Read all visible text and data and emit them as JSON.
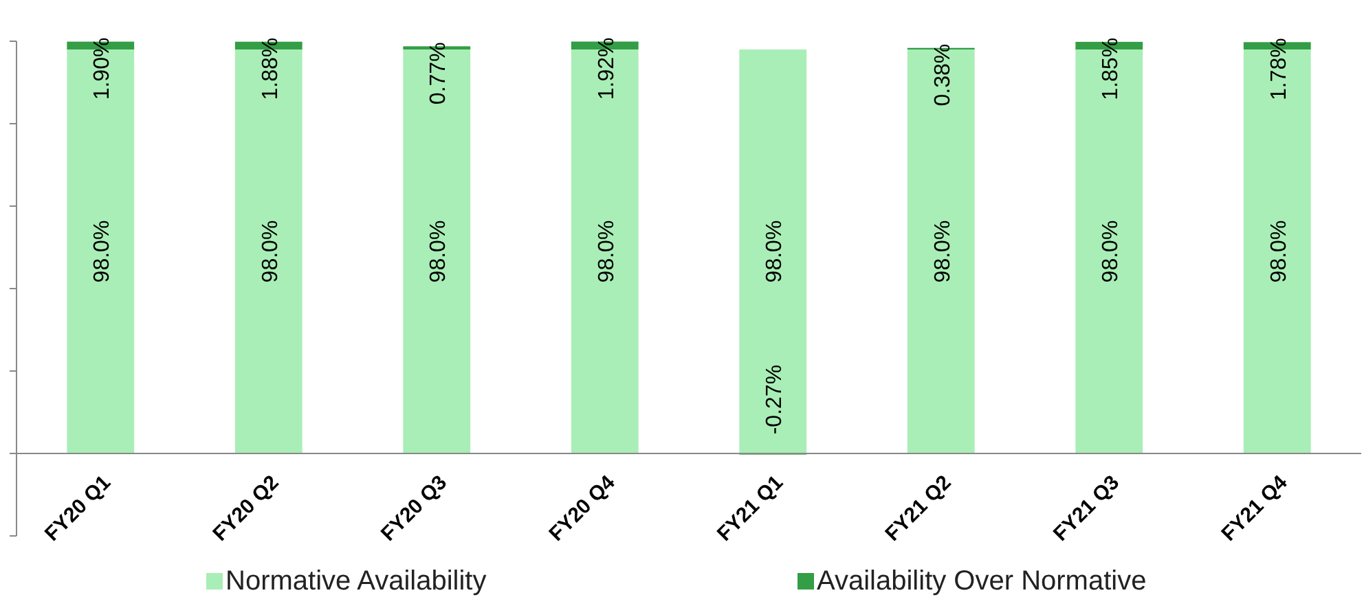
{
  "chart_data": {
    "type": "bar",
    "stacked": true,
    "categories": [
      "FY20 Q1",
      "FY20 Q2",
      "FY20 Q3",
      "FY20 Q4",
      "FY21 Q1",
      "FY21 Q2",
      "FY21 Q3",
      "FY21 Q4"
    ],
    "series": [
      {
        "name": "Normative Availability",
        "color": "#a9eeb6",
        "values": [
          98.0,
          98.0,
          98.0,
          98.0,
          98.0,
          98.0,
          98.0,
          98.0
        ],
        "value_labels": [
          "98.0%",
          "98.0%",
          "98.0%",
          "98.0%",
          "98.0%",
          "98.0%",
          "98.0%",
          "98.0%"
        ]
      },
      {
        "name": "Availability Over Normative",
        "color": "#339e45",
        "values": [
          1.9,
          1.88,
          0.77,
          1.92,
          -0.27,
          0.38,
          1.85,
          1.78
        ],
        "value_labels": [
          "1.90%",
          "1.88%",
          "0.77%",
          "1.92%",
          "-0.27%",
          "0.38%",
          "1.85%",
          "1.78%"
        ]
      }
    ],
    "ylim": [
      -20,
      100
    ],
    "yticks": [
      {
        "value": -20,
        "label": null
      },
      {
        "value": 0,
        "label": null
      },
      {
        "value": 20,
        "label": null
      },
      {
        "value": 40,
        "label": null
      },
      {
        "value": 60,
        "label": null
      },
      {
        "value": 80,
        "label": null
      },
      {
        "value": 100,
        "label": null
      }
    ],
    "tick_labels": "x",
    "grid": false,
    "legend": "bottom"
  }
}
